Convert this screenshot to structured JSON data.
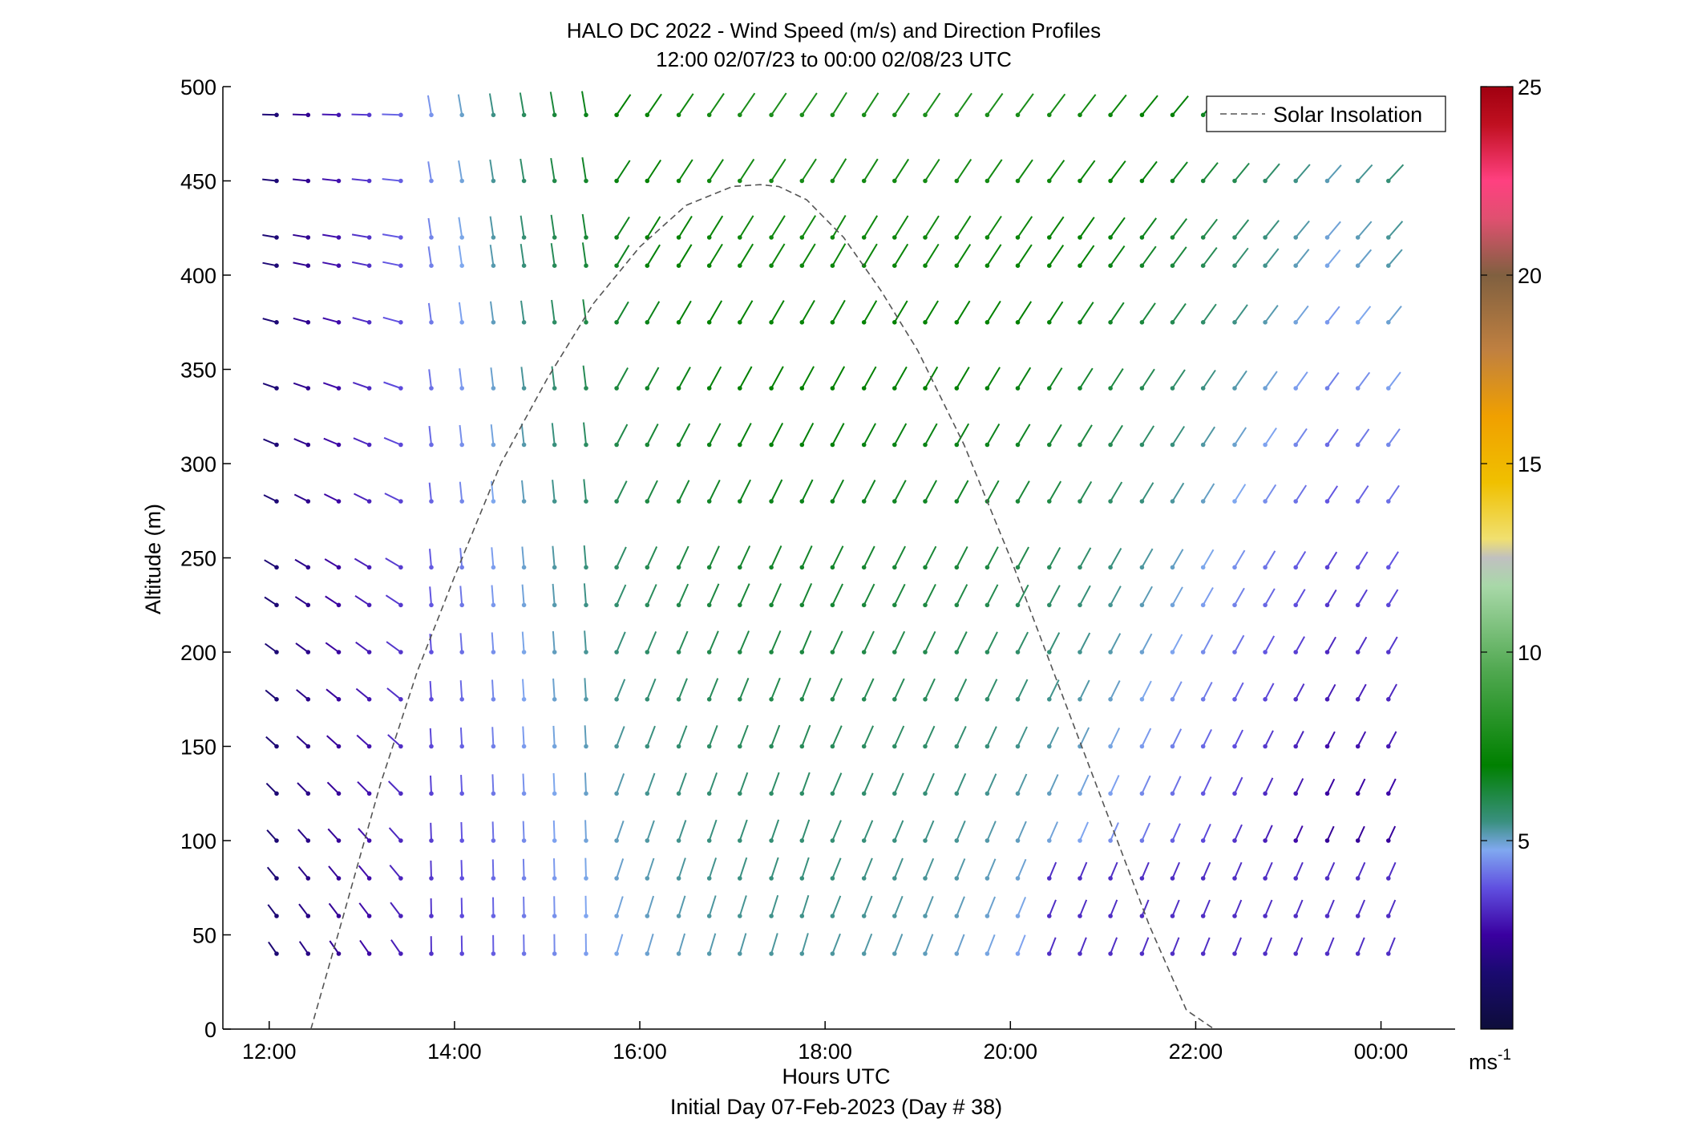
{
  "chart_data": {
    "type": "quiver",
    "title": "HALO DC 2022 - Wind Speed (m/s) and Direction Profiles",
    "subtitle": "12:00 02/07/23 to 00:00 02/08/23  UTC",
    "xlabel": "Hours UTC",
    "xlabel2": "Initial Day 07-Feb-2023 (Day # 38)",
    "ylabel": "Altitude (m)",
    "xlim": [
      11.5,
      24.8
    ],
    "ylim": [
      0,
      500
    ],
    "x_ticks": [
      12,
      14,
      16,
      18,
      20,
      22,
      24
    ],
    "x_tick_labels": [
      "12:00",
      "14:00",
      "16:00",
      "18:00",
      "20:00",
      "22:00",
      "00:00"
    ],
    "y_ticks": [
      0,
      50,
      100,
      150,
      200,
      250,
      300,
      350,
      400,
      450,
      500
    ],
    "y_tick_labels": [
      "0",
      "50",
      "100",
      "150",
      "200",
      "250",
      "300",
      "350",
      "400",
      "450",
      "500"
    ],
    "grid": false,
    "legend": {
      "label": "Solar Insolation",
      "position": "top-right"
    },
    "colorbar": {
      "min": 0,
      "max": 25,
      "ticks": [
        5,
        10,
        15,
        20,
        25
      ],
      "tick_labels": [
        "5",
        "10",
        "15",
        "20",
        "25"
      ],
      "unit_base": "ms",
      "unit_exp": "-1",
      "colors": [
        "#0d0d3a",
        "#3a00a0",
        "#6050e0",
        "#80a8f0",
        "#3a9080",
        "#008000",
        "#50a850",
        "#a8d8a8",
        "#c0c0c0",
        "#f0e070",
        "#f0c000",
        "#f0a000",
        "#c08040",
        "#806040",
        "#e05070",
        "#ff4080",
        "#c01020",
        "#a00010"
      ]
    },
    "times": [
      12.08,
      12.42,
      12.75,
      13.08,
      13.42,
      13.75,
      14.08,
      14.42,
      14.75,
      15.08,
      15.42,
      15.75,
      16.08,
      16.42,
      16.75,
      17.08,
      17.42,
      17.75,
      18.08,
      18.42,
      18.75,
      19.08,
      19.42,
      19.75,
      20.08,
      20.42,
      20.75,
      21.08,
      21.42,
      21.75,
      22.08,
      22.42,
      22.75,
      23.08,
      23.42,
      23.75,
      24.08
    ],
    "altitudes": [
      40,
      60,
      80,
      100,
      125,
      150,
      175,
      200,
      225,
      245,
      280,
      310,
      340,
      375,
      405,
      420,
      450,
      485
    ],
    "solar_insolation": {
      "x": [
        12.45,
        12.8,
        13.2,
        13.6,
        14.0,
        14.5,
        15.0,
        15.5,
        16.0,
        16.5,
        17.0,
        17.3,
        17.5,
        17.8,
        18.2,
        18.6,
        19.0,
        19.5,
        20.0,
        20.5,
        21.0,
        21.5,
        21.9,
        22.2
      ],
      "y": [
        0,
        60,
        130,
        190,
        240,
        300,
        345,
        385,
        415,
        437,
        447,
        448,
        447,
        440,
        420,
        392,
        360,
        310,
        250,
        185,
        120,
        55,
        10,
        0
      ]
    }
  }
}
